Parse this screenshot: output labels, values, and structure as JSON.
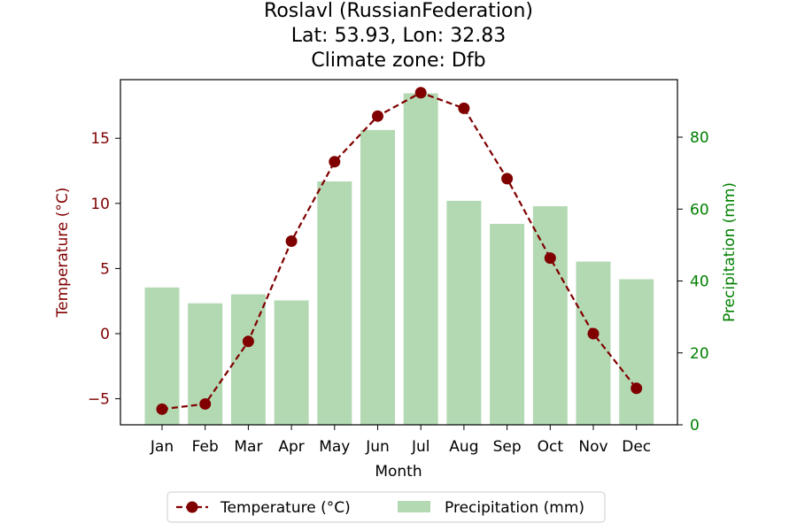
{
  "chart_data": {
    "type": "bar+line",
    "title": [
      "Roslavl (RussianFederation)",
      "Lat: 53.93, Lon: 32.83",
      "Climate zone: Dfb"
    ],
    "categories": [
      "Jan",
      "Feb",
      "Mar",
      "Apr",
      "May",
      "Jun",
      "Jul",
      "Aug",
      "Sep",
      "Oct",
      "Nov",
      "Dec"
    ],
    "xlabel": "Month",
    "ylabel_left": "Temperature (°C)",
    "ylabel_right": "Precipitation (mm)",
    "ylim_left": [
      -7,
      19.5
    ],
    "ylim_right": [
      0,
      96
    ],
    "yticks_left": [
      "−5",
      "0",
      "5",
      "10",
      "15"
    ],
    "yticks_left_values": [
      -5,
      0,
      5,
      10,
      15
    ],
    "yticks_right": [
      "0",
      "20",
      "40",
      "60",
      "80"
    ],
    "yticks_right_values": [
      0,
      20,
      40,
      60,
      80
    ],
    "series": [
      {
        "name": "Temperature (°C)",
        "kind": "line",
        "axis": "left",
        "color": "#800000",
        "style": "dashed-with-circles",
        "values": [
          -5.8,
          -5.4,
          -0.6,
          7.1,
          13.2,
          16.7,
          18.5,
          17.3,
          11.9,
          5.8,
          0.0,
          -4.2
        ]
      },
      {
        "name": "Precipitation (mm)",
        "kind": "bar",
        "axis": "right",
        "color": "#b3d9b3",
        "values": [
          38.2,
          33.8,
          36.3,
          34.6,
          67.7,
          82.0,
          92.2,
          62.3,
          55.9,
          60.8,
          45.4,
          40.5
        ]
      }
    ],
    "legend": {
      "placement": "bottom-center",
      "entries": [
        "Temperature (°C)",
        "Precipitation (mm)"
      ]
    },
    "colors": {
      "left_axis": "#800000",
      "right_axis": "#008000",
      "line": "#800000",
      "bars": "#b3d9b3"
    },
    "grid": false
  }
}
